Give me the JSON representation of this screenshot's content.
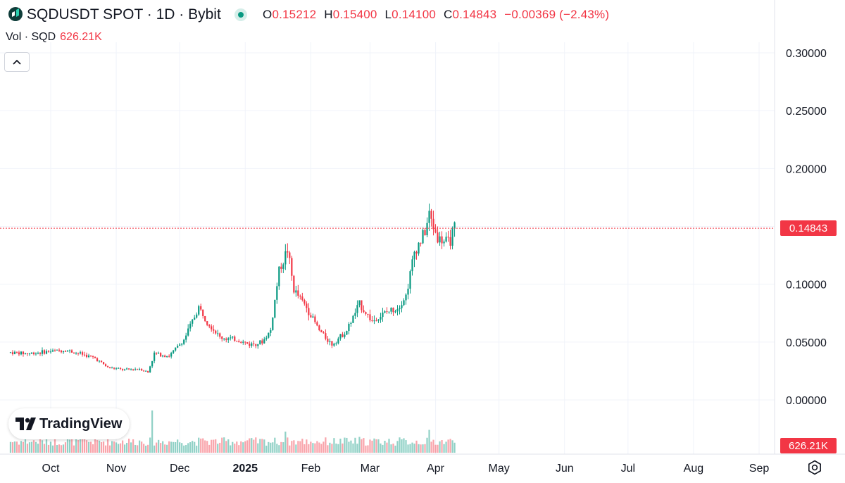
{
  "header": {
    "symbol_title": "SQDUSDT SPOT · 1D · Bybit",
    "ohlc": [
      {
        "key": "O",
        "value": "0.15212"
      },
      {
        "key": "H",
        "value": "0.15400"
      },
      {
        "key": "L",
        "value": "0.14100"
      },
      {
        "key": "C",
        "value": "0.14843"
      }
    ],
    "change": "−0.00369 (−2.43%)"
  },
  "volume_legend": {
    "label": "Vol · SQD",
    "value": "626.21K"
  },
  "branding": {
    "name": "TradingView"
  },
  "price_tag": "0.14843",
  "volume_tag": "626.21K",
  "colors": {
    "up": "#089981",
    "down": "#f23645",
    "grid": "#f0f3fa",
    "text": "#131722"
  },
  "icons": {
    "logo": "bybit-logo-icon",
    "collapse": "chevron-up-icon",
    "settings": "gear-icon",
    "brand": "tradingview-logo-icon"
  },
  "chart_data": {
    "type": "candlestick",
    "y_ticks": [
      "0.30000",
      "0.25000",
      "0.20000",
      "0.15000",
      "0.10000",
      "0.05000",
      "0.00000"
    ],
    "ylim": [
      0,
      0.3
    ],
    "x_ticks": [
      {
        "label": "Oct",
        "date": "2024-10-01",
        "bold": false
      },
      {
        "label": "Nov",
        "date": "2024-11-01",
        "bold": false
      },
      {
        "label": "Dec",
        "date": "2024-12-01",
        "bold": false
      },
      {
        "label": "2025",
        "date": "2025-01-01",
        "bold": true
      },
      {
        "label": "Feb",
        "date": "2025-02-01",
        "bold": false
      },
      {
        "label": "Mar",
        "date": "2025-03-01",
        "bold": false
      },
      {
        "label": "Apr",
        "date": "2025-04-01",
        "bold": false
      },
      {
        "label": "May",
        "date": "2025-05-01",
        "bold": false
      },
      {
        "label": "Jun",
        "date": "2025-06-01",
        "bold": false
      },
      {
        "label": "Jul",
        "date": "2025-07-01",
        "bold": false
      },
      {
        "label": "Aug",
        "date": "2025-08-01",
        "bold": false
      },
      {
        "label": "Sep",
        "date": "2025-09-01",
        "bold": false
      }
    ],
    "last_price": 0.14843,
    "price_path": [
      {
        "date": "2024-09-12",
        "price": 0.041
      },
      {
        "date": "2024-09-20",
        "price": 0.04
      },
      {
        "date": "2024-10-01",
        "price": 0.042
      },
      {
        "date": "2024-10-08",
        "price": 0.043
      },
      {
        "date": "2024-10-15",
        "price": 0.04
      },
      {
        "date": "2024-10-22",
        "price": 0.036
      },
      {
        "date": "2024-10-28",
        "price": 0.028
      },
      {
        "date": "2024-11-05",
        "price": 0.026
      },
      {
        "date": "2024-11-12",
        "price": 0.027
      },
      {
        "date": "2024-11-16",
        "price": 0.024
      },
      {
        "date": "2024-11-19",
        "price": 0.04
      },
      {
        "date": "2024-11-26",
        "price": 0.038
      },
      {
        "date": "2024-12-03",
        "price": 0.052
      },
      {
        "date": "2024-12-10",
        "price": 0.08
      },
      {
        "date": "2024-12-14",
        "price": 0.068
      },
      {
        "date": "2024-12-20",
        "price": 0.054
      },
      {
        "date": "2024-12-28",
        "price": 0.052
      },
      {
        "date": "2025-01-03",
        "price": 0.048
      },
      {
        "date": "2025-01-09",
        "price": 0.05
      },
      {
        "date": "2025-01-13",
        "price": 0.06
      },
      {
        "date": "2025-01-17",
        "price": 0.112
      },
      {
        "date": "2025-01-21",
        "price": 0.13
      },
      {
        "date": "2025-01-24",
        "price": 0.095
      },
      {
        "date": "2025-01-30",
        "price": 0.08
      },
      {
        "date": "2025-02-05",
        "price": 0.06
      },
      {
        "date": "2025-02-11",
        "price": 0.048
      },
      {
        "date": "2025-02-18",
        "price": 0.06
      },
      {
        "date": "2025-02-24",
        "price": 0.083
      },
      {
        "date": "2025-03-02",
        "price": 0.068
      },
      {
        "date": "2025-03-08",
        "price": 0.075
      },
      {
        "date": "2025-03-14",
        "price": 0.08
      },
      {
        "date": "2025-03-18",
        "price": 0.09
      },
      {
        "date": "2025-03-22",
        "price": 0.128
      },
      {
        "date": "2025-03-27",
        "price": 0.145
      },
      {
        "date": "2025-03-29",
        "price": 0.16
      },
      {
        "date": "2025-04-02",
        "price": 0.14
      },
      {
        "date": "2025-04-07",
        "price": 0.135
      },
      {
        "date": "2025-04-10",
        "price": 0.148
      }
    ],
    "volume_spikes": [
      {
        "date": "2024-11-18",
        "value": 12
      },
      {
        "date": "2025-01-20",
        "value": 6
      },
      {
        "date": "2025-03-29",
        "value": 6.5
      },
      {
        "date": "2025-02-24",
        "value": 4.5
      },
      {
        "date": "2024-12-13",
        "value": 3.5
      }
    ]
  }
}
